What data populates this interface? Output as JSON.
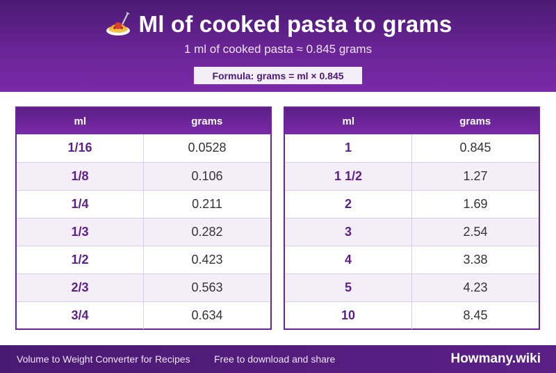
{
  "header": {
    "icon": "spaghetti-icon",
    "title": "Ml of cooked pasta to grams",
    "subtitle": "1 ml of cooked pasta ≈ 0.845 grams",
    "formula": "Formula: grams = ml × 0.845"
  },
  "tables": [
    {
      "headers": [
        "ml",
        "grams"
      ],
      "rows": [
        [
          "1/16",
          "0.0528"
        ],
        [
          "1/8",
          "0.106"
        ],
        [
          "1/4",
          "0.211"
        ],
        [
          "1/3",
          "0.282"
        ],
        [
          "1/2",
          "0.423"
        ],
        [
          "2/3",
          "0.563"
        ],
        [
          "3/4",
          "0.634"
        ]
      ]
    },
    {
      "headers": [
        "ml",
        "grams"
      ],
      "rows": [
        [
          "1",
          "0.845"
        ],
        [
          "1 1/2",
          "1.27"
        ],
        [
          "2",
          "1.69"
        ],
        [
          "3",
          "2.54"
        ],
        [
          "4",
          "3.38"
        ],
        [
          "5",
          "4.23"
        ],
        [
          "10",
          "8.45"
        ]
      ]
    }
  ],
  "footer": {
    "left": "Volume to Weight Converter for Recipes",
    "middle": "Free to download and share",
    "brand": "Howmany.wiki"
  },
  "colors": {
    "primary": "#6a2496",
    "dark": "#4a1a73",
    "row_alt": "#f4eef9"
  }
}
